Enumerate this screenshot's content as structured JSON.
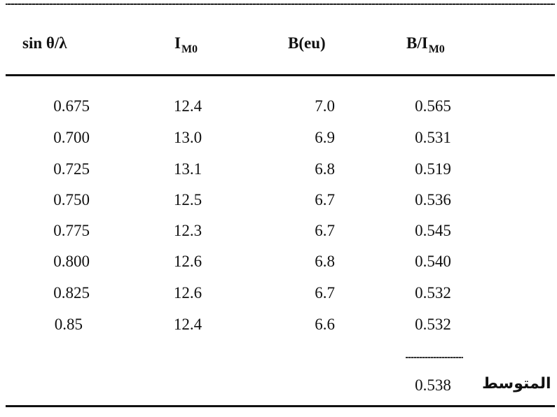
{
  "table": {
    "headers": {
      "col0": "sin θ/λ",
      "col1_main": "I",
      "col1_sub": "M0",
      "col2": "B(eu)",
      "col3_main": "B/I",
      "col3_sub": "M0"
    },
    "rows": [
      [
        "0.675",
        "12.4",
        "7.0",
        "0.565"
      ],
      [
        "0.700",
        "13.0",
        "6.9",
        "0.531"
      ],
      [
        "0.725",
        "13.1",
        "6.8",
        "0.519"
      ],
      [
        "0.750",
        "12.5",
        "6.7",
        "0.536"
      ],
      [
        "0.775",
        "12.3",
        "6.7",
        "0.545"
      ],
      [
        "0.800",
        "12.6",
        "6.8",
        "0.540"
      ],
      [
        "0.825",
        "12.6",
        "6.7",
        "0.532"
      ],
      [
        "0.85",
        "12.4",
        "6.6",
        "0.532"
      ]
    ],
    "average": {
      "label": "المتوسط",
      "value": "0.538"
    }
  }
}
